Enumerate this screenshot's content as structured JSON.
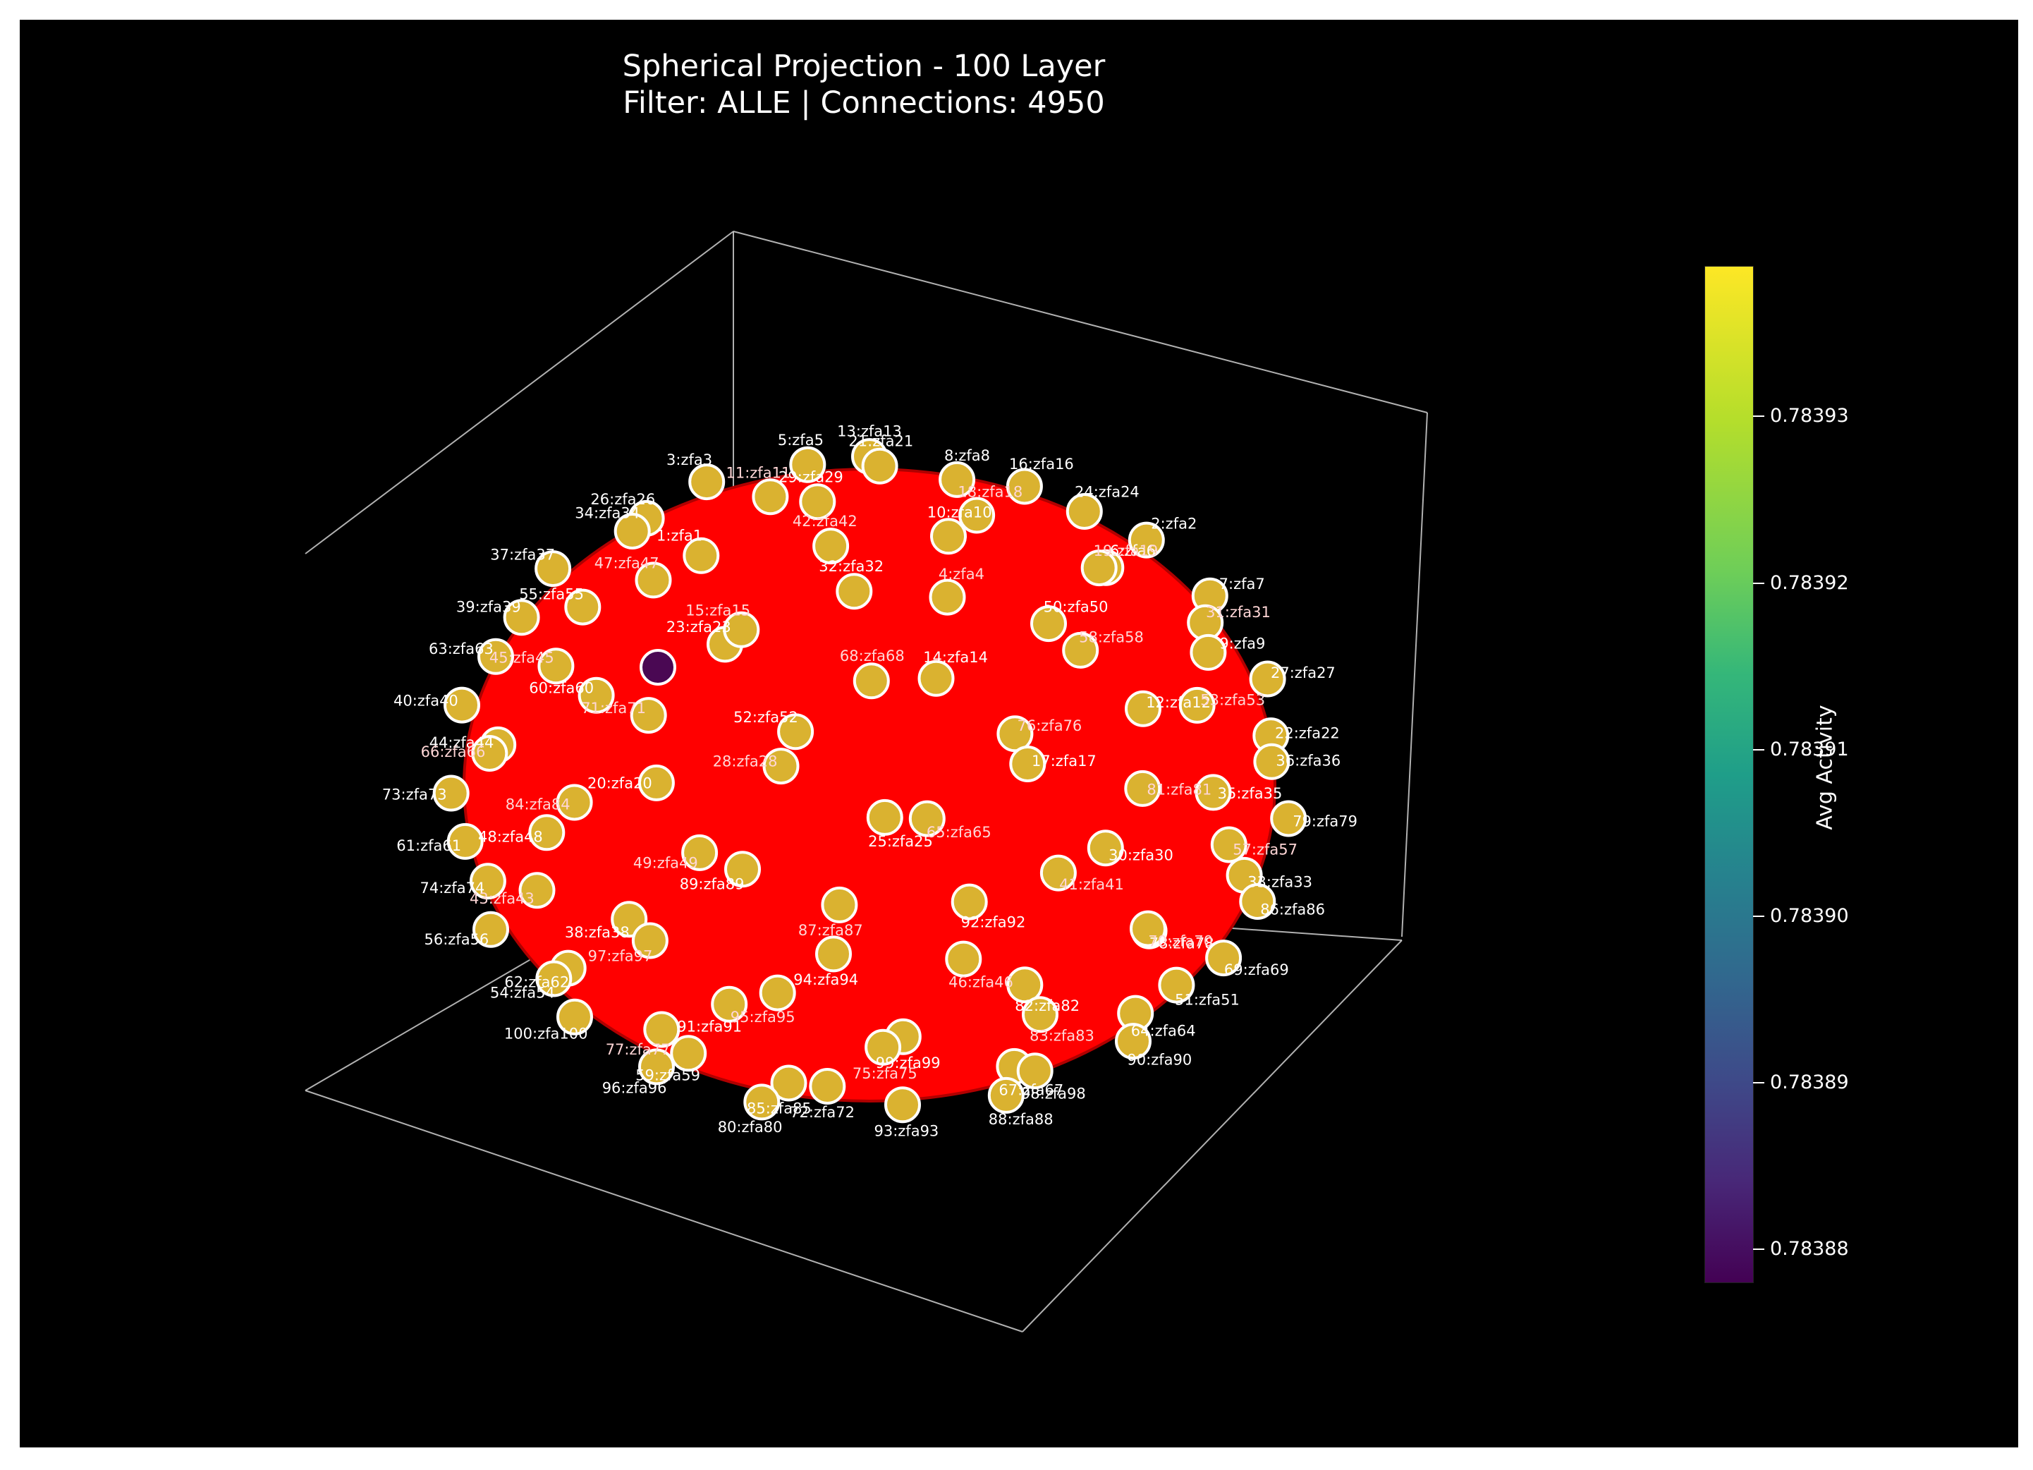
{
  "title_lines": [
    "Spherical Projection - 100 Layer",
    "Filter: ALLE | Connections: 4950"
  ],
  "colors": {
    "background": "#000000",
    "sphere_fill": "#ff0000",
    "node_high": "#f4d12a",
    "node_low": "#440154",
    "node_stroke": "#ffffff",
    "label": "#ffffff",
    "axis_frame": "#d0d0d0"
  },
  "chart_data": {
    "type": "scatter",
    "projection": "3d-sphere",
    "colorbar": {
      "label": "Avg Activity",
      "colormap": "viridis",
      "range": [
        0.783878,
        0.783939
      ],
      "ticks": [
        "0.78388",
        "0.78389",
        "0.78390",
        "0.78391",
        "0.78392",
        "0.78393"
      ]
    },
    "nodes": [
      {
        "id": "13:zfa13",
        "activity": 0.78393
      },
      {
        "id": "5:zfa5",
        "activity": 0.78393
      },
      {
        "id": "21:zfa21",
        "activity": 0.78393
      },
      {
        "id": "8:zfa8",
        "activity": 0.78393
      },
      {
        "id": "3:zfa3",
        "activity": 0.78393
      },
      {
        "id": "16:zfa16",
        "activity": 0.78393
      },
      {
        "id": "29:zfa29",
        "activity": 0.78393
      },
      {
        "id": "11:zfa11",
        "activity": 0.78393
      },
      {
        "id": "24:zfa24",
        "activity": 0.78393
      },
      {
        "id": "26:zfa26",
        "activity": 0.78393
      },
      {
        "id": "18:zfa18",
        "activity": 0.78393
      },
      {
        "id": "10:zfa10",
        "activity": 0.78393
      },
      {
        "id": "34:zfa34",
        "activity": 0.78393
      },
      {
        "id": "2:zfa2",
        "activity": 0.78393
      },
      {
        "id": "1:zfa1",
        "activity": 0.78393
      },
      {
        "id": "42:zfa42",
        "activity": 0.78393
      },
      {
        "id": "6:zfa6",
        "activity": 0.78393
      },
      {
        "id": "37:zfa37",
        "activity": 0.78393
      },
      {
        "id": "19:zfa19",
        "activity": 0.78393
      },
      {
        "id": "32:zfa32",
        "activity": 0.78393
      },
      {
        "id": "47:zfa47",
        "activity": 0.78393
      },
      {
        "id": "7:zfa7",
        "activity": 0.78393
      },
      {
        "id": "55:zfa55",
        "activity": 0.78393
      },
      {
        "id": "4:zfa4",
        "activity": 0.78393
      },
      {
        "id": "50:zfa50",
        "activity": 0.78393
      },
      {
        "id": "39:zfa39",
        "activity": 0.78393
      },
      {
        "id": "31:zfa31",
        "activity": 0.78393
      },
      {
        "id": "23:zfa23",
        "activity": 0.78393
      },
      {
        "id": "15:zfa15",
        "activity": 0.78393
      },
      {
        "id": "9:zfa9",
        "activity": 0.78393
      },
      {
        "id": "63:zfa63",
        "activity": 0.78393
      },
      {
        "id": "58:zfa58",
        "activity": 0.78393
      },
      {
        "id": "14:zfa14",
        "activity": 0.78393
      },
      {
        "id": "45:zfa45",
        "activity": 0.78393
      },
      {
        "id": "27:zfa27",
        "activity": 0.78393
      },
      {
        "id": "60:zfa60",
        "activity": 0.78393
      },
      {
        "id": "68:zfa68",
        "activity": 0.78393
      },
      {
        "id": "12:zfa12",
        "activity": 0.78393
      },
      {
        "id": "40:zfa40",
        "activity": 0.78393
      },
      {
        "id": "53:zfa53",
        "activity": 0.78393
      },
      {
        "id": "52:zfa52",
        "activity": 0.78393
      },
      {
        "id": "71:zfa71",
        "activity": 0.78393
      },
      {
        "id": "22:zfa22",
        "activity": 0.78393
      },
      {
        "id": "44:zfa44",
        "activity": 0.78393
      },
      {
        "id": "76:zfa76",
        "activity": 0.78393
      },
      {
        "id": "17:zfa17",
        "activity": 0.78393
      },
      {
        "id": "66:zfa66",
        "activity": 0.78393
      },
      {
        "id": "36:zfa36",
        "activity": 0.78393
      },
      {
        "id": "20:zfa20",
        "activity": 0.78393
      },
      {
        "id": "28:zfa28",
        "activity": 0.78393
      },
      {
        "id": "35:zfa35",
        "activity": 0.78393
      },
      {
        "id": "73:zfa73",
        "activity": 0.78393
      },
      {
        "id": "81:zfa81",
        "activity": 0.78393
      },
      {
        "id": "25:zfa25",
        "activity": 0.78393
      },
      {
        "id": "84:zfa84",
        "activity": 0.78393
      },
      {
        "id": "79:zfa79",
        "activity": 0.78393
      },
      {
        "id": "48:zfa48",
        "activity": 0.78393
      },
      {
        "id": "65:zfa65",
        "activity": 0.78393
      },
      {
        "id": "30:zfa30",
        "activity": 0.78393
      },
      {
        "id": "61:zfa61",
        "activity": 0.78393
      },
      {
        "id": "57:zfa57",
        "activity": 0.78393
      },
      {
        "id": "89:zfa89",
        "activity": 0.78393
      },
      {
        "id": "49:zfa49",
        "activity": 0.78393
      },
      {
        "id": "33:zfa33",
        "activity": 0.78393
      },
      {
        "id": "74:zfa74",
        "activity": 0.78393
      },
      {
        "id": "41:zfa41",
        "activity": 0.78393
      },
      {
        "id": "92:zfa92",
        "activity": 0.78393
      },
      {
        "id": "43:zfa43",
        "activity": 0.78393
      },
      {
        "id": "86:zfa86",
        "activity": 0.78393
      },
      {
        "id": "38:zfa38",
        "activity": 0.78393
      },
      {
        "id": "87:zfa87",
        "activity": 0.78393
      },
      {
        "id": "78:zfa78",
        "activity": 0.78393
      },
      {
        "id": "56:zfa56",
        "activity": 0.78393
      },
      {
        "id": "70:zfa70",
        "activity": 0.78393
      },
      {
        "id": "94:zfa94",
        "activity": 0.78393
      },
      {
        "id": "97:zfa97",
        "activity": 0.78393
      },
      {
        "id": "69:zfa69",
        "activity": 0.78393
      },
      {
        "id": "62:zfa62",
        "activity": 0.78393
      },
      {
        "id": "46:zfa46",
        "activity": 0.78393
      },
      {
        "id": "82:zfa82",
        "activity": 0.78393
      },
      {
        "id": "54:zfa54",
        "activity": 0.78393
      },
      {
        "id": "51:zfa51",
        "activity": 0.78393
      },
      {
        "id": "91:zfa91",
        "activity": 0.78393
      },
      {
        "id": "95:zfa95",
        "activity": 0.78393
      },
      {
        "id": "64:zfa64",
        "activity": 0.78393
      },
      {
        "id": "100:zfa100",
        "activity": 0.78393
      },
      {
        "id": "83:zfa83",
        "activity": 0.78393
      },
      {
        "id": "99:zfa99",
        "activity": 0.78393
      },
      {
        "id": "77:zfa77",
        "activity": 0.78393
      },
      {
        "id": "90:zfa90",
        "activity": 0.78393
      },
      {
        "id": "59:zfa59",
        "activity": 0.78393
      },
      {
        "id": "75:zfa75",
        "activity": 0.78393
      },
      {
        "id": "67:zfa67",
        "activity": 0.78393
      },
      {
        "id": "96:zfa96",
        "activity": 0.78393
      },
      {
        "id": "98:zfa98",
        "activity": 0.78393
      },
      {
        "id": "72:zfa72",
        "activity": 0.78393
      },
      {
        "id": "85:zfa85",
        "activity": 0.78393
      },
      {
        "id": "88:zfa88",
        "activity": 0.78393
      },
      {
        "id": "80:zfa80",
        "activity": 0.78393
      },
      {
        "id": "93:zfa93",
        "activity": 0.78393
      },
      {
        "id": "",
        "activity": 0.78388
      }
    ]
  }
}
